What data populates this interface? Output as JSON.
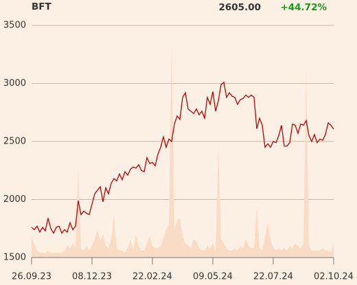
{
  "chart_data": {
    "type": "line",
    "title": "BFT",
    "last_price": "2605.00",
    "change": "+44.72%",
    "x": [
      0,
      1,
      2,
      3,
      4,
      5,
      6,
      7,
      8,
      9,
      10,
      11,
      12,
      13,
      14,
      15,
      16,
      17,
      18,
      19,
      20,
      21,
      22,
      23,
      24,
      25,
      26,
      27,
      28,
      29,
      30,
      31,
      32,
      33,
      34,
      35,
      36,
      37,
      38,
      39,
      40,
      41,
      42,
      43,
      44,
      45,
      46,
      47,
      48,
      49,
      50,
      51,
      52,
      53,
      54,
      55,
      56,
      57,
      58,
      59,
      60,
      61,
      62,
      63,
      64,
      65,
      66,
      67,
      68,
      69,
      70,
      71,
      72,
      73,
      74,
      75,
      76,
      77,
      78,
      79,
      80,
      81,
      82,
      83,
      84,
      85,
      86,
      87,
      88,
      89,
      90,
      91,
      92,
      93,
      94,
      95,
      96,
      97,
      98,
      99,
      100,
      101,
      102,
      103,
      104,
      105,
      106,
      107,
      108,
      109,
      110
    ],
    "series": [
      {
        "color": "#c00000",
        "values": [
          1760,
          1740,
          1770,
          1720,
          1760,
          1730,
          1840,
          1750,
          1710,
          1760,
          1770,
          1710,
          1740,
          1720,
          1800,
          1740,
          1770,
          1990,
          1870,
          1900,
          1880,
          1870,
          1960,
          2050,
          2080,
          2110,
          1980,
          2100,
          2050,
          2140,
          2180,
          2160,
          2220,
          2170,
          2240,
          2210,
          2260,
          2280,
          2270,
          2300,
          2250,
          2240,
          2360,
          2310,
          2320,
          2290,
          2390,
          2450,
          2540,
          2450,
          2520,
          2500,
          2650,
          2720,
          2690,
          2880,
          2920,
          2780,
          2760,
          2740,
          2780,
          2730,
          2760,
          2700,
          2880,
          2820,
          2930,
          2760,
          2850,
          2990,
          3010,
          2880,
          2920,
          2890,
          2880,
          2820,
          2860,
          2870,
          2900,
          2880,
          2900,
          2880,
          2610,
          2700,
          2640,
          2450,
          2480,
          2450,
          2500,
          2490,
          2550,
          2640,
          2460,
          2460,
          2490,
          2650,
          2640,
          2570,
          2650,
          2640,
          2680,
          2550,
          2500,
          2560,
          2490,
          2520,
          2510,
          2560,
          2660,
          2640,
          2605
        ]
      },
      {
        "color": "#f9dcc6",
        "axis": "y2",
        "values": [
          9,
          6,
          3,
          2,
          2,
          2,
          3,
          2,
          2,
          2,
          2,
          2,
          3,
          5,
          4,
          6,
          4,
          38,
          4,
          3,
          5,
          3,
          5,
          8,
          12,
          7,
          10,
          5,
          4,
          8,
          18,
          4,
          3,
          3,
          2,
          4,
          8,
          3,
          10,
          5,
          3,
          3,
          6,
          9,
          5,
          4,
          4,
          5,
          8,
          12,
          14,
          92,
          12,
          16,
          17,
          9,
          6,
          5,
          4,
          8,
          7,
          4,
          3,
          3,
          5,
          4,
          6,
          3,
          48,
          8,
          6,
          4,
          3,
          3,
          4,
          3,
          5,
          4,
          8,
          5,
          4,
          4,
          22,
          4,
          3,
          9,
          15,
          8,
          4,
          3,
          4,
          3,
          4,
          3,
          5,
          4,
          6,
          5,
          4,
          6,
          80,
          5,
          3,
          3,
          3,
          3,
          4,
          3,
          3,
          2,
          6
        ]
      }
    ],
    "xlim": [
      0,
      110
    ],
    "xticks": [
      {
        "value": 0,
        "label": "26.09.23"
      },
      {
        "value": 22,
        "label": "08.12.23"
      },
      {
        "value": 44,
        "label": "22.02.24"
      },
      {
        "value": 66,
        "label": "09.05.24"
      },
      {
        "value": 88,
        "label": "22.07.24"
      },
      {
        "value": 110,
        "label": "02.10.24"
      }
    ],
    "ylim": [
      1500,
      3500
    ],
    "yticks": [
      1500,
      2000,
      2500,
      3000,
      3500
    ],
    "y2lim": [
      0,
      100
    ],
    "grid": true
  }
}
